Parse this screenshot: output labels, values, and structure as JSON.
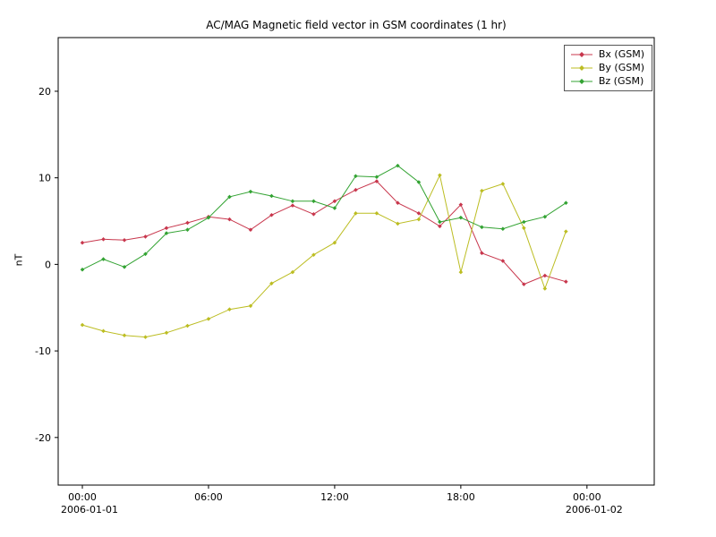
{
  "title": "AC/MAG  Magnetic field vector in GSM coordinates (1 hr)",
  "chart_data": {
    "type": "line",
    "title": "AC/MAG  Magnetic field vector in GSM coordinates (1 hr)",
    "xlabel": "",
    "ylabel": "nT",
    "x_unit": "hours since 2006-01-01 00:00",
    "xlim": [
      -1.15,
      27.2
    ],
    "ylim": [
      -25.5,
      26.2
    ],
    "grid": false,
    "legend_position": "top-right",
    "x": [
      0,
      1,
      2,
      3,
      4,
      5,
      6,
      7,
      8,
      9,
      10,
      11,
      12,
      13,
      14,
      15,
      16,
      17,
      18,
      19,
      20,
      21,
      22,
      23
    ],
    "series": [
      {
        "name": "Bx (GSM)",
        "color": "#c8374d",
        "values": [
          2.5,
          2.9,
          2.8,
          3.2,
          4.2,
          4.8,
          5.5,
          5.2,
          4.0,
          5.7,
          6.8,
          5.8,
          7.3,
          8.6,
          9.6,
          7.1,
          5.9,
          4.4,
          6.9,
          1.3,
          0.4,
          -2.3,
          -1.3,
          -2.0
        ]
      },
      {
        "name": "By (GSM)",
        "color": "#bcbd22",
        "values": [
          -7.0,
          -7.7,
          -8.2,
          -8.4,
          -7.9,
          -7.1,
          -6.3,
          -5.2,
          -4.8,
          -2.2,
          -0.9,
          1.1,
          2.5,
          5.9,
          5.9,
          4.7,
          5.2,
          10.3,
          -0.9,
          8.5,
          9.3,
          4.2,
          -2.8,
          3.8
        ]
      },
      {
        "name": "Bz (GSM)",
        "color": "#33a333",
        "values": [
          -0.6,
          0.6,
          -0.3,
          1.2,
          3.6,
          4.0,
          5.4,
          7.8,
          8.4,
          7.9,
          7.3,
          7.3,
          6.5,
          10.2,
          10.1,
          11.4,
          9.5,
          4.9,
          5.4,
          4.3,
          4.1,
          4.9,
          5.5,
          7.1
        ]
      }
    ],
    "x_ticks": [
      {
        "hour": 0,
        "label": "00:00",
        "date": "2006-01-01"
      },
      {
        "hour": 6,
        "label": "06:00"
      },
      {
        "hour": 12,
        "label": "12:00"
      },
      {
        "hour": 18,
        "label": "18:00"
      },
      {
        "hour": 24,
        "label": "00:00",
        "date": "2006-01-02"
      }
    ],
    "y_ticks": [
      {
        "value": 20,
        "label": "20"
      },
      {
        "value": 10,
        "label": "10"
      },
      {
        "value": 0,
        "label": "0"
      },
      {
        "value": -10,
        "label": "-10"
      },
      {
        "value": -20,
        "label": "-20"
      }
    ]
  }
}
